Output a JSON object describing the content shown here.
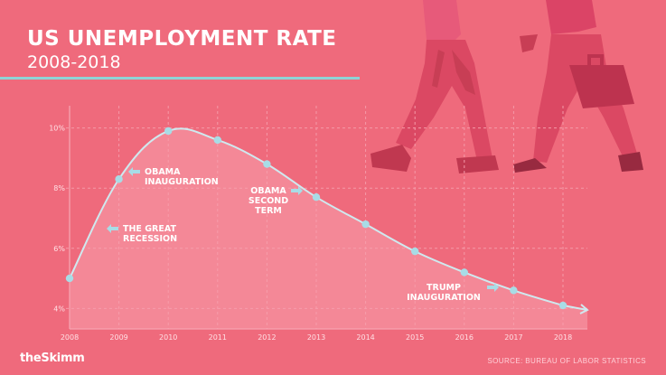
{
  "header": {
    "title": "US UNEMPLOYMENT RATE",
    "subtitle": "2008-2018"
  },
  "footer": {
    "brand": "theSkimm",
    "source": "SOURCE: BUREAU OF LABOR STATISTICS"
  },
  "colors": {
    "background": "#ef6a7c",
    "line": "#cfe9ef",
    "point": "#a8dce6",
    "accent_rule": "#8fd3d6",
    "illustration": "#d8435f"
  },
  "chart_data": {
    "type": "line",
    "title": "US UNEMPLOYMENT RATE",
    "subtitle": "2008-2018",
    "x": [
      2008,
      2009,
      2010,
      2011,
      2012,
      2013,
      2014,
      2015,
      2016,
      2017,
      2018
    ],
    "x_tick_labels": [
      "2008",
      "2009",
      "2010",
      "2011",
      "2012",
      "2013",
      "2014",
      "2015",
      "2016",
      "2017",
      "2018"
    ],
    "series": [
      {
        "values": [
          5.0,
          8.3,
          9.9,
          9.6,
          8.8,
          7.7,
          6.8,
          5.9,
          5.2,
          4.6,
          4.1
        ]
      }
    ],
    "y_ticks": [
      4,
      6,
      8,
      10
    ],
    "y_tick_labels": [
      "4%",
      "6%",
      "8%",
      "10%"
    ],
    "ylim": [
      3.5,
      10.5
    ],
    "xlabel": "",
    "ylabel": "",
    "grid": true,
    "annotations": [
      {
        "id": "great-recession",
        "lines": [
          "THE GREAT",
          "RECESSION"
        ],
        "x": 2009,
        "arrow": "left"
      },
      {
        "id": "obama-inauguration",
        "lines": [
          "OBAMA",
          "INAUGURATION"
        ],
        "x": 2009,
        "arrow": "left"
      },
      {
        "id": "obama-second-term",
        "lines": [
          "OBAMA",
          "SECOND",
          "TERM"
        ],
        "x": 2013,
        "arrow": "right"
      },
      {
        "id": "trump-inauguration",
        "lines": [
          "TRUMP",
          "INAUGURATION"
        ],
        "x": 2017,
        "arrow": "right"
      }
    ]
  }
}
